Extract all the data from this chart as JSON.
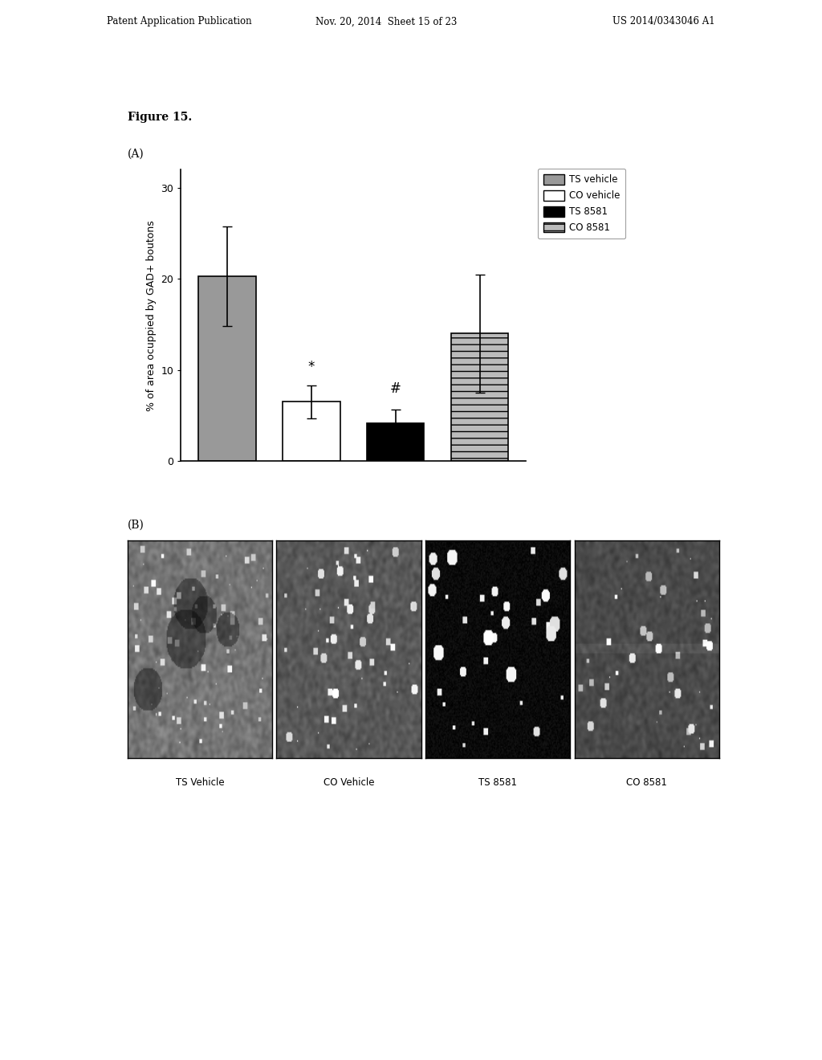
{
  "figure_label": "Figure 15.",
  "panel_a_label": "(A)",
  "panel_b_label": "(B)",
  "bar_values": [
    20.3,
    6.5,
    4.2,
    14.0
  ],
  "bar_errors": [
    5.5,
    1.8,
    1.5,
    6.5
  ],
  "bar_colors": [
    "#999999",
    "#ffffff",
    "#000000",
    "#bbbbbb"
  ],
  "bar_edge_colors": [
    "#000000",
    "#000000",
    "#000000",
    "#000000"
  ],
  "bar_hatches": [
    "",
    "",
    "",
    "--"
  ],
  "categories": [
    "TS vehicle",
    "CO vehicle",
    "TS 8581",
    "CO 8581"
  ],
  "ylabel": "% of area ocuppied by GAD+ boutons",
  "ylim": [
    0,
    32
  ],
  "yticks": [
    0,
    10,
    20,
    30
  ],
  "legend_labels": [
    "TS vehicle",
    "CO vehicle",
    "TS 8581",
    "CO 8581"
  ],
  "legend_hatches": [
    "",
    "",
    "",
    "--"
  ],
  "legend_facecolors": [
    "#999999",
    "#ffffff",
    "#000000",
    "#bbbbbb"
  ],
  "significance_labels": [
    {
      "bar_idx": 1,
      "label": "*",
      "y": 9.5
    },
    {
      "bar_idx": 2,
      "label": "#",
      "y": 7.2
    }
  ],
  "image_labels": [
    "TS Vehicle",
    "CO Vehicle",
    "TS 8581",
    "CO 8581"
  ],
  "header_left": "Patent Application Publication",
  "header_mid": "Nov. 20, 2014  Sheet 15 of 23",
  "header_right": "US 2014/0343046 A1",
  "bg_color": "#ffffff",
  "text_color": "#000000"
}
